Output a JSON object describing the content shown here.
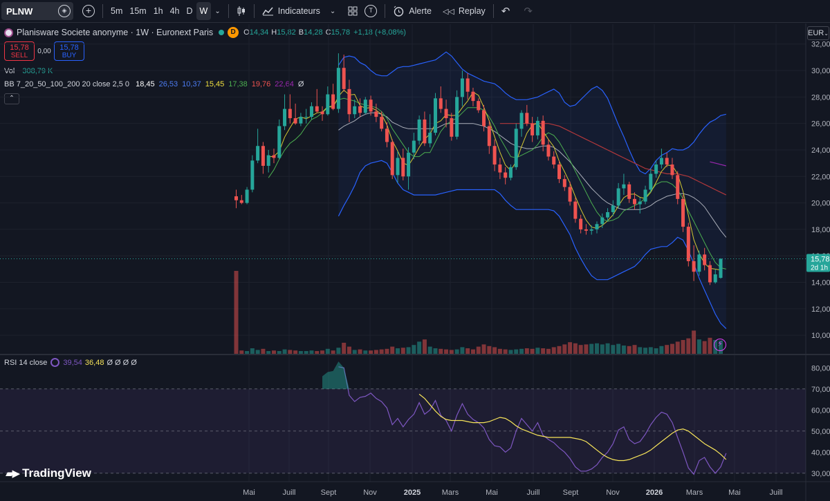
{
  "toolbar": {
    "symbol": "PLNW",
    "timeframes": [
      "5m",
      "15m",
      "1h",
      "4h",
      "D",
      "W"
    ],
    "active_timeframe": "W",
    "indicators_label": "Indicateurs",
    "alert_label": "Alerte",
    "replay_label": "Replay",
    "template_letter": "T"
  },
  "legend": {
    "title": "Planisware Societe anonyme · 1W · Euronext Paris",
    "badge": "D",
    "o_label": "O",
    "o": "14,34",
    "h_label": "H",
    "h": "15,82",
    "b_label": "B",
    "b": "14,28",
    "c_label": "C",
    "c": "15,78",
    "change": "+1,18 (+8,08%)"
  },
  "trade": {
    "sell_price": "15,78",
    "sell_label": "SELL",
    "spread": "0,00",
    "buy_price": "15,78",
    "buy_label": "BUY"
  },
  "volume": {
    "label": "Vol",
    "value": "308,79 K"
  },
  "bb": {
    "label": "BB 7_20_50_100_200 20 close 2,5 0",
    "values": [
      "18,45",
      "26,53",
      "10,37",
      "15,45",
      "17,38",
      "19,76",
      "22,64",
      "Ø"
    ],
    "colors": [
      "#ffffff",
      "#4c7cf3",
      "#4c7cf3",
      "#f0e040",
      "#4caf50",
      "#ef5350",
      "#9c27b0",
      "#d1d4dc"
    ]
  },
  "rsi": {
    "label": "RSI 14 close",
    "value1": "39,54",
    "value2": "36,48",
    "rest": "Ø Ø Ø Ø"
  },
  "currency": "EUR",
  "last_price": {
    "price": "15,78",
    "countdown": "2d 1h"
  },
  "branding": "TradingView",
  "chart_data": {
    "type": "candlestick",
    "x_ticks": [
      "Mai",
      "Juill",
      "Sept",
      "Nov",
      "2025",
      "Mars",
      "Mai",
      "Juill",
      "Sept",
      "Nov",
      "2026",
      "Mars",
      "Mai",
      "Juill"
    ],
    "price_ticks": [
      "32,00",
      "30,00",
      "28,00",
      "26,00",
      "24,00",
      "22,00",
      "20,00",
      "18,00",
      "16,00",
      "14,00",
      "12,00",
      "10,00"
    ],
    "price_ylim": [
      8.6,
      33.5
    ],
    "rsi_ticks": [
      "80,00",
      "70,00",
      "60,00",
      "50,00",
      "40,00",
      "30,00"
    ],
    "rsi_ylim": [
      26,
      86
    ],
    "rsi_band": [
      30,
      70
    ],
    "candles_ohlc": [
      [
        20.5,
        21.0,
        19.6,
        20.2
      ],
      [
        20.2,
        20.6,
        19.9,
        20.0
      ],
      [
        20.0,
        21.2,
        19.9,
        21.0
      ],
      [
        21.0,
        23.6,
        20.8,
        23.2
      ],
      [
        23.2,
        25.6,
        23.0,
        24.3
      ],
      [
        24.3,
        24.6,
        22.2,
        22.8
      ],
      [
        22.8,
        24.0,
        22.3,
        23.6
      ],
      [
        23.6,
        24.1,
        23.0,
        23.4
      ],
      [
        23.4,
        26.3,
        23.3,
        25.8
      ],
      [
        25.8,
        28.2,
        25.5,
        27.1
      ],
      [
        27.1,
        28.2,
        26.0,
        26.4
      ],
      [
        26.4,
        27.5,
        25.9,
        26.0
      ],
      [
        26.0,
        26.8,
        25.8,
        26.5
      ],
      [
        26.5,
        27.1,
        26.0,
        26.5
      ],
      [
        26.5,
        27.6,
        26.3,
        27.3
      ],
      [
        27.3,
        28.6,
        26.8,
        26.9
      ],
      [
        26.9,
        27.3,
        26.2,
        26.7
      ],
      [
        26.7,
        28.8,
        26.6,
        28.2
      ],
      [
        28.2,
        29.0,
        27.0,
        27.1
      ],
      [
        27.1,
        31.3,
        26.8,
        30.2
      ],
      [
        30.2,
        31.2,
        28.4,
        28.6
      ],
      [
        28.6,
        29.3,
        26.1,
        26.7
      ],
      [
        26.7,
        27.8,
        26.4,
        27.3
      ],
      [
        27.3,
        27.9,
        26.5,
        26.8
      ],
      [
        26.8,
        28.0,
        26.7,
        27.8
      ],
      [
        27.8,
        28.1,
        26.6,
        26.9
      ],
      [
        26.9,
        27.5,
        26.1,
        26.5
      ],
      [
        26.5,
        26.9,
        25.4,
        25.6
      ],
      [
        25.6,
        26.1,
        24.2,
        24.6
      ],
      [
        24.6,
        24.8,
        21.8,
        22.1
      ],
      [
        22.1,
        23.9,
        21.5,
        23.4
      ],
      [
        23.4,
        24.1,
        21.7,
        22.0
      ],
      [
        22.0,
        24.2,
        21.0,
        23.8
      ],
      [
        23.8,
        25.3,
        23.3,
        24.7
      ],
      [
        24.7,
        26.6,
        24.4,
        26.3
      ],
      [
        26.3,
        26.9,
        24.3,
        24.5
      ],
      [
        24.5,
        26.7,
        24.2,
        25.3
      ],
      [
        25.3,
        28.3,
        25.1,
        27.9
      ],
      [
        27.9,
        28.8,
        26.8,
        27.1
      ],
      [
        27.1,
        27.8,
        25.7,
        26.4
      ],
      [
        26.4,
        26.8,
        24.7,
        25.0
      ],
      [
        25.0,
        28.5,
        24.8,
        28.0
      ],
      [
        28.0,
        30.0,
        27.3,
        29.4
      ],
      [
        29.4,
        29.8,
        27.8,
        28.4
      ],
      [
        28.4,
        28.7,
        27.3,
        27.7
      ],
      [
        27.7,
        27.9,
        26.8,
        27.0
      ],
      [
        27.0,
        27.4,
        25.4,
        25.8
      ],
      [
        25.8,
        26.2,
        23.7,
        24.3
      ],
      [
        24.3,
        24.8,
        22.4,
        22.9
      ],
      [
        22.9,
        23.4,
        21.8,
        22.3
      ],
      [
        22.3,
        22.7,
        21.4,
        21.9
      ],
      [
        21.9,
        22.9,
        21.7,
        22.7
      ],
      [
        22.7,
        26.0,
        22.5,
        25.6
      ],
      [
        25.6,
        27.0,
        25.0,
        26.8
      ],
      [
        26.8,
        27.4,
        25.8,
        26.0
      ],
      [
        26.0,
        26.5,
        24.6,
        25.1
      ],
      [
        25.1,
        26.5,
        24.8,
        26.2
      ],
      [
        26.2,
        26.6,
        23.9,
        24.4
      ],
      [
        24.4,
        24.8,
        23.2,
        23.5
      ],
      [
        23.5,
        23.9,
        22.6,
        22.9
      ],
      [
        22.9,
        23.2,
        21.5,
        21.8
      ],
      [
        21.8,
        22.1,
        20.9,
        21.2
      ],
      [
        21.2,
        21.6,
        19.8,
        20.1
      ],
      [
        20.1,
        20.4,
        18.5,
        18.8
      ],
      [
        18.8,
        19.1,
        17.7,
        18.0
      ],
      [
        18.0,
        18.4,
        17.6,
        17.9
      ],
      [
        17.9,
        18.3,
        17.6,
        18.0
      ],
      [
        18.0,
        18.6,
        17.7,
        18.4
      ],
      [
        18.4,
        19.2,
        18.1,
        18.9
      ],
      [
        18.9,
        19.6,
        18.6,
        19.3
      ],
      [
        19.3,
        20.2,
        19.0,
        19.8
      ],
      [
        19.8,
        21.5,
        19.6,
        21.1
      ],
      [
        21.1,
        22.2,
        20.6,
        21.4
      ],
      [
        21.4,
        21.6,
        20.0,
        20.3
      ],
      [
        20.3,
        20.8,
        19.5,
        19.9
      ],
      [
        19.9,
        20.4,
        19.2,
        20.1
      ],
      [
        20.1,
        21.3,
        19.9,
        21.0
      ],
      [
        21.0,
        22.6,
        20.8,
        22.2
      ],
      [
        22.2,
        23.2,
        21.9,
        22.9
      ],
      [
        22.9,
        24.1,
        22.6,
        23.4
      ],
      [
        23.4,
        23.8,
        22.7,
        22.9
      ],
      [
        22.9,
        23.4,
        21.8,
        22.1
      ],
      [
        22.1,
        22.4,
        19.9,
        20.3
      ],
      [
        20.3,
        20.6,
        17.8,
        18.2
      ],
      [
        18.2,
        18.5,
        15.2,
        15.6
      ],
      [
        15.6,
        16.8,
        14.1,
        14.8
      ],
      [
        14.8,
        16.4,
        14.5,
        16.1
      ],
      [
        16.1,
        16.6,
        14.9,
        15.3
      ],
      [
        15.3,
        15.6,
        13.8,
        14.0
      ],
      [
        14.0,
        15.0,
        13.9,
        14.6
      ],
      [
        14.34,
        15.82,
        14.28,
        15.78
      ]
    ],
    "volumes": [
      15,
      0.6,
      0.5,
      1.0,
      0.7,
      0.9,
      0.5,
      0.6,
      0.5,
      0.8,
      0.7,
      0.6,
      0.5,
      0.5,
      0.6,
      0.5,
      0.6,
      0.9,
      0.6,
      1.1,
      2.0,
      1.3,
      0.7,
      0.8,
      0.6,
      0.6,
      0.7,
      0.8,
      0.9,
      1.3,
      1.0,
      1.1,
      1.2,
      1.6,
      2.2,
      2.6,
      1.3,
      1.0,
      0.9,
      0.8,
      0.7,
      0.8,
      1.2,
      1.0,
      0.8,
      1.3,
      1.7,
      1.4,
      1.2,
      0.9,
      0.8,
      0.7,
      0.8,
      0.9,
      1.0,
      0.9,
      1.1,
      1.0,
      0.9,
      1.2,
      1.4,
      1.7,
      2.1,
      1.9,
      1.6,
      1.7,
      1.8,
      1.9,
      1.7,
      1.9,
      1.6,
      1.8,
      1.5,
      1.4,
      1.6,
      1.2,
      1.1,
      1.2,
      1.0,
      1.4,
      1.6,
      1.8,
      2.2,
      2.5,
      2.8,
      4.2,
      2.6,
      2.3,
      2.9,
      2.5,
      2.4
    ],
    "bb_upper": [
      null,
      null,
      null,
      null,
      null,
      null,
      null,
      null,
      null,
      null,
      null,
      null,
      null,
      null,
      null,
      null,
      null,
      null,
      null,
      30.4,
      31.0,
      31.1,
      31.0,
      30.6,
      30.4,
      30.0,
      29.7,
      29.6,
      29.6,
      29.9,
      30.2,
      30.3,
      30.3,
      30.4,
      30.5,
      30.6,
      30.7,
      30.8,
      31.1,
      31.4,
      31.1,
      30.6,
      30.1,
      29.8,
      29.6,
      29.4,
      29.2,
      29.1,
      29.0,
      28.7,
      28.3,
      28.0,
      27.8,
      27.8,
      27.8,
      27.9,
      28.0,
      28.2,
      28.4,
      28.6,
      28.3,
      27.6,
      27.3,
      27.4,
      27.8,
      28.2,
      28.6,
      28.8,
      28.5,
      27.9,
      26.9,
      25.9,
      25.0,
      24.0,
      23.1,
      22.4,
      22.2,
      22.6,
      23.2,
      23.6,
      23.8,
      24.1,
      24.0,
      24.0,
      24.2,
      24.6,
      25.2,
      25.7,
      26.1,
      26.3,
      26.6,
      26.7
    ],
    "bb_lower": [
      null,
      null,
      null,
      null,
      null,
      null,
      null,
      null,
      null,
      null,
      null,
      null,
      null,
      null,
      null,
      null,
      null,
      null,
      null,
      19.0,
      19.8,
      20.5,
      21.3,
      22.3,
      22.8,
      23.0,
      23.1,
      23.2,
      23.0,
      22.3,
      21.5,
      21.0,
      20.8,
      20.6,
      20.6,
      20.6,
      20.6,
      20.6,
      20.7,
      20.8,
      20.9,
      21.0,
      21.0,
      21.0,
      21.0,
      21.0,
      21.0,
      21.0,
      21.0,
      20.7,
      20.2,
      19.8,
      19.5,
      19.5,
      19.5,
      19.5,
      19.5,
      19.5,
      19.5,
      19.4,
      19.0,
      18.3,
      17.6,
      16.6,
      15.8,
      15.1,
      14.5,
      14.2,
      14.2,
      14.2,
      14.4,
      14.6,
      14.8,
      15.0,
      15.2,
      15.6,
      16.1,
      16.5,
      16.6,
      16.7,
      16.7,
      17.0,
      17.4,
      17.2,
      16.4,
      15.4,
      14.3,
      13.4,
      12.5,
      11.6,
      10.9,
      10.5
    ],
    "ma7": [
      null,
      null,
      null,
      null,
      null,
      null,
      21.9,
      22.5,
      23.3,
      24.0,
      24.5,
      24.8,
      25.2,
      25.8,
      26.3,
      26.5,
      26.8,
      27.2,
      27.4,
      27.8,
      27.9,
      27.8,
      27.7,
      27.5,
      27.4,
      27.3,
      27.2,
      26.9,
      26.4,
      25.6,
      25.0,
      24.4,
      23.8,
      23.5,
      23.5,
      23.8,
      23.8,
      24.6,
      25.4,
      25.9,
      26.2,
      26.4,
      26.8,
      27.2,
      27.2,
      27.2,
      27.0,
      26.5,
      25.8,
      24.9,
      24.2,
      23.5,
      23.4,
      23.6,
      23.8,
      24.0,
      24.4,
      25.0,
      25.3,
      25.1,
      24.6,
      23.9,
      23.2,
      22.4,
      21.6,
      20.8,
      20.0,
      19.3,
      18.8,
      18.6,
      18.7,
      18.9,
      19.4,
      19.6,
      19.8,
      20.0,
      20.4,
      20.9,
      21.4,
      21.6,
      21.6,
      21.4,
      21.0,
      20.3,
      19.4,
      18.6,
      17.8,
      17.0,
      16.2,
      15.5,
      15.1,
      15.0
    ],
    "ma20": [
      null,
      null,
      null,
      null,
      null,
      null,
      null,
      null,
      null,
      null,
      null,
      null,
      null,
      null,
      null,
      null,
      null,
      null,
      null,
      25.5,
      25.8,
      26.0,
      26.2,
      26.5,
      26.7,
      26.8,
      26.8,
      26.7,
      26.5,
      26.1,
      25.9,
      25.7,
      25.6,
      25.6,
      25.6,
      25.6,
      25.6,
      25.6,
      25.8,
      26.0,
      26.0,
      26.0,
      26.0,
      26.0,
      26.0,
      25.9,
      25.8,
      25.6,
      25.4,
      25.1,
      24.8,
      24.5,
      24.3,
      24.2,
      24.1,
      24.1,
      24.2,
      24.3,
      24.3,
      24.2,
      23.9,
      23.5,
      23.1,
      22.6,
      22.1,
      21.6,
      21.1,
      20.7,
      20.3,
      20.0,
      19.8,
      19.6,
      19.5,
      19.5,
      19.5,
      19.5,
      19.6,
      19.8,
      20.1,
      20.3,
      20.5,
      20.6,
      20.7,
      20.7,
      20.6,
      20.4,
      20.1,
      19.7,
      19.1,
      18.5,
      17.9,
      17.4
    ],
    "ma50": [
      null,
      null,
      null,
      null,
      null,
      null,
      null,
      null,
      null,
      null,
      null,
      null,
      null,
      null,
      null,
      null,
      null,
      null,
      null,
      null,
      null,
      null,
      null,
      null,
      null,
      null,
      null,
      null,
      null,
      null,
      null,
      null,
      null,
      null,
      null,
      null,
      null,
      null,
      null,
      null,
      null,
      null,
      null,
      null,
      null,
      null,
      null,
      null,
      null,
      26.0,
      26.0,
      26.0,
      26.0,
      26.0,
      26.0,
      26.0,
      26.0,
      26.0,
      26.0,
      25.9,
      25.8,
      25.6,
      25.4,
      25.2,
      25.0,
      24.8,
      24.6,
      24.4,
      24.2,
      24.0,
      23.8,
      23.6,
      23.4,
      23.2,
      23.0,
      22.8,
      22.6,
      22.5,
      22.4,
      22.3,
      22.2,
      22.2,
      22.2,
      22.1,
      22.0,
      21.8,
      21.6,
      21.4,
      21.2,
      21.0,
      20.8,
      20.6
    ],
    "ma100": [
      null,
      null,
      null,
      null,
      null,
      null,
      null,
      null,
      null,
      null,
      null,
      null,
      null,
      null,
      null,
      null,
      null,
      null,
      null,
      null,
      null,
      null,
      null,
      null,
      null,
      null,
      null,
      null,
      null,
      null,
      null,
      null,
      null,
      null,
      null,
      null,
      null,
      null,
      null,
      null,
      null,
      null,
      null,
      null,
      null,
      null,
      null,
      null,
      null,
      null,
      null,
      null,
      null,
      null,
      null,
      null,
      null,
      null,
      null,
      null,
      null,
      null,
      null,
      null,
      null,
      null,
      null,
      null,
      null,
      null,
      null,
      null,
      null,
      null,
      null,
      null,
      null,
      null,
      null,
      null,
      null,
      null,
      null,
      null,
      null,
      null,
      null,
      null,
      23.1,
      23.0,
      22.9,
      22.8
    ],
    "rsi_values": [
      null,
      null,
      null,
      null,
      null,
      null,
      null,
      null,
      null,
      null,
      null,
      null,
      null,
      null,
      null,
      null,
      null,
      null,
      null,
      80.5,
      80.0,
      67.0,
      64.0,
      66.0,
      66.5,
      68.0,
      65.5,
      64.0,
      61.0,
      53.0,
      56.0,
      52.0,
      55.5,
      58.0,
      63.5,
      58.0,
      60.0,
      64.5,
      57.5,
      55.0,
      50.0,
      57.5,
      63.0,
      58.0,
      55.5,
      54.0,
      51.5,
      46.0,
      43.0,
      42.5,
      40.0,
      42.0,
      50.0,
      56.0,
      53.0,
      50.0,
      54.0,
      48.0,
      46.0,
      44.5,
      42.0,
      40.0,
      37.0,
      33.0,
      31.0,
      31.0,
      32.0,
      34.0,
      37.5,
      40.0,
      44.0,
      50.5,
      52.0,
      46.0,
      44.0,
      45.0,
      48.5,
      53.0,
      56.5,
      59.0,
      58.0,
      54.0,
      47.0,
      40.0,
      32.5,
      29.5,
      36.0,
      37.5,
      33.0,
      30.0,
      33.0,
      39.5
    ],
    "rsi_ma": [
      null,
      null,
      null,
      null,
      null,
      null,
      null,
      null,
      null,
      null,
      null,
      null,
      null,
      null,
      null,
      null,
      null,
      null,
      null,
      null,
      null,
      null,
      null,
      null,
      null,
      null,
      null,
      null,
      null,
      null,
      null,
      null,
      null,
      null,
      67.5,
      65.5,
      62.5,
      59.5,
      57.0,
      55.5,
      55.0,
      55.0,
      55.0,
      54.5,
      54.0,
      54.0,
      54.0,
      54.5,
      55.5,
      56.5,
      56.0,
      54.5,
      52.5,
      51.0,
      50.0,
      49.0,
      48.0,
      47.5,
      47.0,
      47.0,
      47.0,
      47.0,
      47.0,
      46.5,
      46.0,
      45.0,
      43.0,
      41.0,
      39.0,
      37.5,
      36.5,
      36.0,
      36.0,
      36.5,
      37.5,
      38.5,
      39.5,
      41.0,
      43.0,
      45.0,
      47.0,
      49.0,
      50.5,
      51.0,
      50.0,
      48.0,
      46.0,
      44.0,
      42.5,
      41.0,
      39.0,
      36.5
    ],
    "last_price_value": 15.78
  }
}
